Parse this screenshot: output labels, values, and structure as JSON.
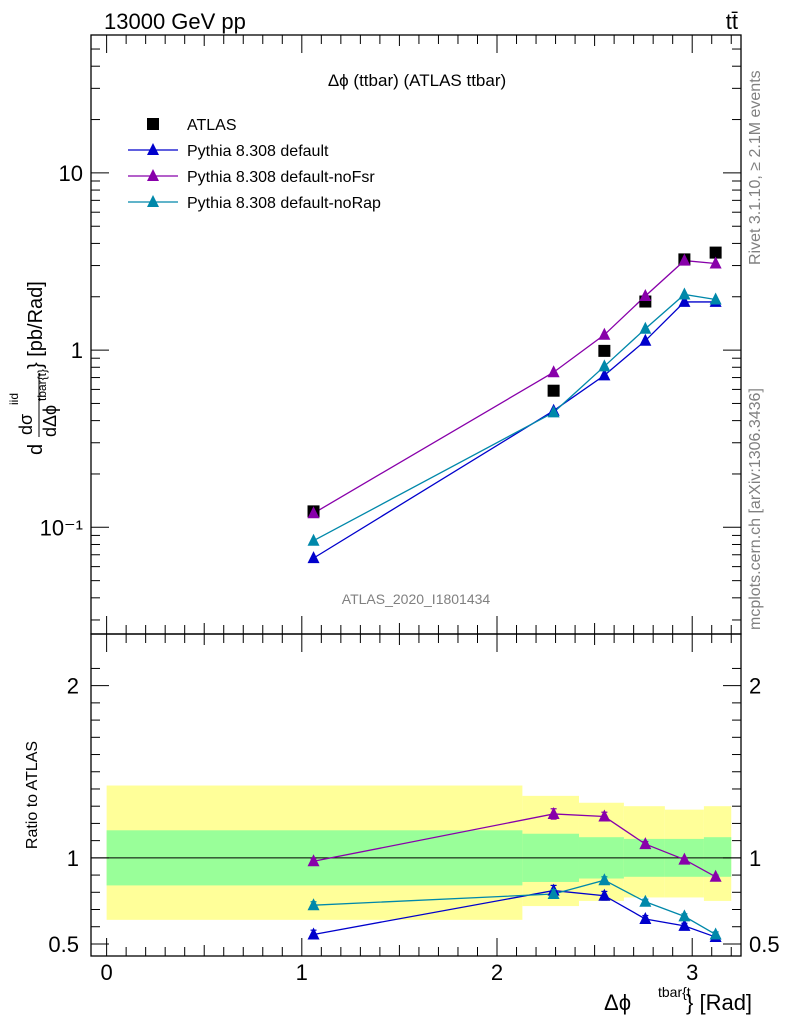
{
  "header": {
    "energy_label": "13000 GeV pp",
    "process_label": "tt̄"
  },
  "side_labels": {
    "rivet": "Rivet 3.1.10, ≥ 2.1M events",
    "source": "mcplots.cern.ch [arXiv:1306.3436]"
  },
  "chart_data": [
    {
      "type": "scatter",
      "title": "Δϕ (ttbar) (ATLAS ttbar)",
      "watermark": "ATLAS_2020_I1801434",
      "ylabel_parts": [
        "d",
        "dσ",
        "iid",
        "dΔϕ",
        "tbar{t}",
        "} [pb/Rad]"
      ],
      "yscale": "log",
      "xlim": [
        -0.08,
        3.25
      ],
      "ylim": [
        0.025,
        60
      ],
      "y_ticks": [
        0.1,
        1,
        10
      ],
      "y_tick_labels": [
        "10⁻¹",
        "1",
        "10"
      ],
      "legend_position": "top-left",
      "x": [
        1.06,
        2.29,
        2.55,
        2.76,
        2.96,
        3.12
      ],
      "series": [
        {
          "name": "ATLAS",
          "marker": "square",
          "color": "#000000",
          "values": [
            0.123,
            0.59,
            0.99,
            1.88,
            3.25,
            3.55
          ]
        },
        {
          "name": "Pythia 8.308 default",
          "marker": "triangle",
          "color": "#0000cc",
          "values": [
            0.067,
            0.455,
            0.72,
            1.13,
            1.87,
            1.87
          ]
        },
        {
          "name": "Pythia 8.308 default-noFsr",
          "marker": "triangle",
          "color": "#8800aa",
          "values": [
            0.12,
            0.75,
            1.22,
            2.02,
            3.2,
            3.08
          ]
        },
        {
          "name": "Pythia 8.308 default-noRap",
          "marker": "triangle",
          "color": "#0088aa",
          "values": [
            0.084,
            0.445,
            0.81,
            1.32,
            2.06,
            1.93
          ]
        }
      ]
    },
    {
      "type": "line",
      "ylabel": "Ratio to ATLAS",
      "xlabel_parts": [
        "Δϕ",
        "tbar{t",
        "} [Rad]"
      ],
      "xlim": [
        -0.08,
        3.25
      ],
      "ylim": [
        0.43,
        2.3
      ],
      "x_ticks": [
        0,
        1,
        2,
        3
      ],
      "x_tick_labels": [
        "0",
        "1",
        "2",
        "3"
      ],
      "y_ticks": [
        0.5,
        1,
        2
      ],
      "y_tick_labels": [
        "0.5",
        "1",
        "2"
      ],
      "bands": {
        "edges": [
          0,
          2.13,
          2.42,
          2.65,
          2.86,
          3.06,
          3.2
        ],
        "green_lo": [
          0.84,
          0.86,
          0.88,
          0.89,
          0.89,
          0.89
        ],
        "green_hi": [
          1.16,
          1.14,
          1.12,
          1.11,
          1.11,
          1.12
        ],
        "yellow_lo": [
          0.64,
          0.72,
          0.75,
          0.77,
          0.77,
          0.75
        ],
        "yellow_hi": [
          1.42,
          1.36,
          1.32,
          1.3,
          1.28,
          1.3
        ]
      },
      "x": [
        1.06,
        2.29,
        2.55,
        2.76,
        2.96,
        3.12
      ],
      "series": [
        {
          "name": "Pythia 8.308 default",
          "color": "#0000cc",
          "values": [
            0.555,
            0.81,
            0.78,
            0.645,
            0.605,
            0.54
          ],
          "err": [
            0.025,
            0.03,
            0.025,
            0.02,
            0.015,
            0.015
          ]
        },
        {
          "name": "Pythia 8.308 default-noFsr",
          "color": "#8800aa",
          "values": [
            0.98,
            1.255,
            1.24,
            1.08,
            0.99,
            0.89
          ],
          "err": [
            0.015,
            0.03,
            0.025,
            0.015,
            0.01,
            0.01
          ]
        },
        {
          "name": "Pythia 8.308 default-noRap",
          "color": "#0088aa",
          "values": [
            0.725,
            0.79,
            0.87,
            0.745,
            0.66,
            0.555
          ],
          "err": [
            0.02,
            0.025,
            0.02,
            0.015,
            0.015,
            0.015
          ]
        }
      ]
    }
  ]
}
